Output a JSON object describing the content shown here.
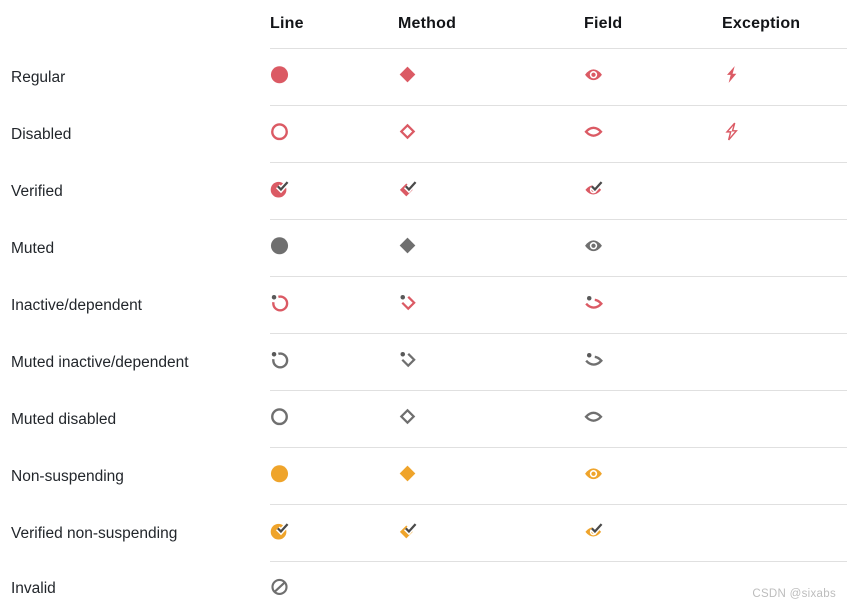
{
  "colors": {
    "red": "#DB5A64",
    "orange": "#EFA42B",
    "gray": "#6F6F6F",
    "dot": "#595959",
    "check": "#4A4A4A",
    "text": "#22262B",
    "header_text": "#121417",
    "divider": "#E0E0E0",
    "watermark": "#BDBDBD"
  },
  "table": {
    "columns": [
      "Line",
      "Method",
      "Field",
      "Exception"
    ],
    "rows": [
      {
        "label": "Regular",
        "cells": [
          {
            "type": "circle-filled",
            "color": "red"
          },
          {
            "type": "diamond-filled",
            "color": "red"
          },
          {
            "type": "eye-filled",
            "color": "red"
          },
          {
            "type": "bolt-filled",
            "color": "red"
          }
        ]
      },
      {
        "label": "Disabled",
        "cells": [
          {
            "type": "circle-outline",
            "color": "red"
          },
          {
            "type": "diamond-outline",
            "color": "red"
          },
          {
            "type": "eye-outline",
            "color": "red"
          },
          {
            "type": "bolt-outline",
            "color": "red"
          }
        ]
      },
      {
        "label": "Verified",
        "cells": [
          {
            "type": "circle-check",
            "color": "red"
          },
          {
            "type": "diamond-check",
            "color": "red"
          },
          {
            "type": "eye-check",
            "color": "red"
          },
          null
        ]
      },
      {
        "label": "Muted",
        "cells": [
          {
            "type": "circle-filled",
            "color": "gray"
          },
          {
            "type": "diamond-filled",
            "color": "gray"
          },
          {
            "type": "eye-filled",
            "color": "gray"
          },
          null
        ]
      },
      {
        "label": "Inactive/dependent",
        "cells": [
          {
            "type": "circle-inactive",
            "color": "red"
          },
          {
            "type": "diamond-inactive",
            "color": "red"
          },
          {
            "type": "eye-inactive",
            "color": "red"
          },
          null
        ]
      },
      {
        "label": "Muted inactive/dependent",
        "cells": [
          {
            "type": "circle-inactive",
            "color": "gray"
          },
          {
            "type": "diamond-inactive",
            "color": "gray"
          },
          {
            "type": "eye-inactive",
            "color": "gray"
          },
          null
        ]
      },
      {
        "label": "Muted disabled",
        "cells": [
          {
            "type": "circle-outline",
            "color": "gray"
          },
          {
            "type": "diamond-outline",
            "color": "gray"
          },
          {
            "type": "eye-outline",
            "color": "gray"
          },
          null
        ]
      },
      {
        "label": "Non-suspending",
        "cells": [
          {
            "type": "circle-filled",
            "color": "orange"
          },
          {
            "type": "diamond-filled",
            "color": "orange"
          },
          {
            "type": "eye-filled",
            "color": "orange"
          },
          null
        ]
      },
      {
        "label": "Verified non-suspending",
        "cells": [
          {
            "type": "circle-check",
            "color": "orange"
          },
          {
            "type": "diamond-check",
            "color": "orange"
          },
          {
            "type": "eye-check",
            "color": "orange"
          },
          null
        ]
      },
      {
        "label": "Invalid",
        "cells": [
          {
            "type": "circle-invalid",
            "color": "gray"
          },
          null,
          null,
          null
        ]
      }
    ]
  },
  "watermark": "CSDN @sixabs"
}
